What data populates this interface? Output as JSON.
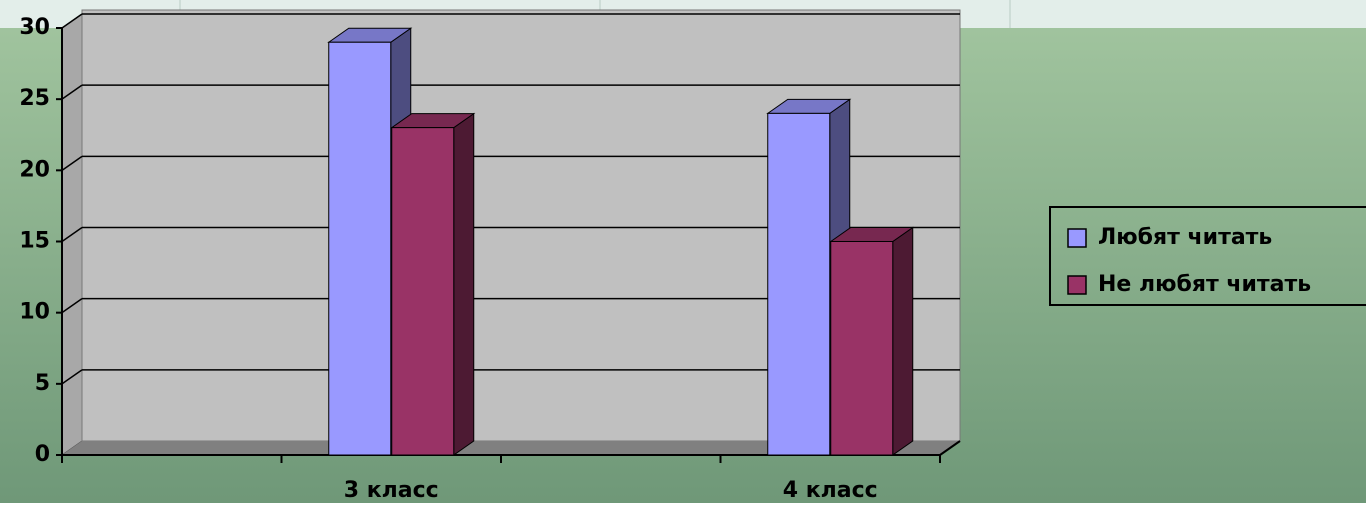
{
  "chart_data": {
    "type": "bar3d",
    "categories": [
      null,
      "3 класс",
      null,
      "4 класс"
    ],
    "series": [
      {
        "name": "Любят читать",
        "color": "#9999ff",
        "values": [
          null,
          29,
          null,
          24
        ]
      },
      {
        "name": "Не любят читать",
        "color": "#993366",
        "values": [
          null,
          23,
          null,
          15
        ]
      }
    ],
    "ylim": [
      0,
      30
    ],
    "yticks": [
      0,
      5,
      10,
      15,
      20,
      25,
      30
    ],
    "grid": true,
    "legend": "right"
  }
}
